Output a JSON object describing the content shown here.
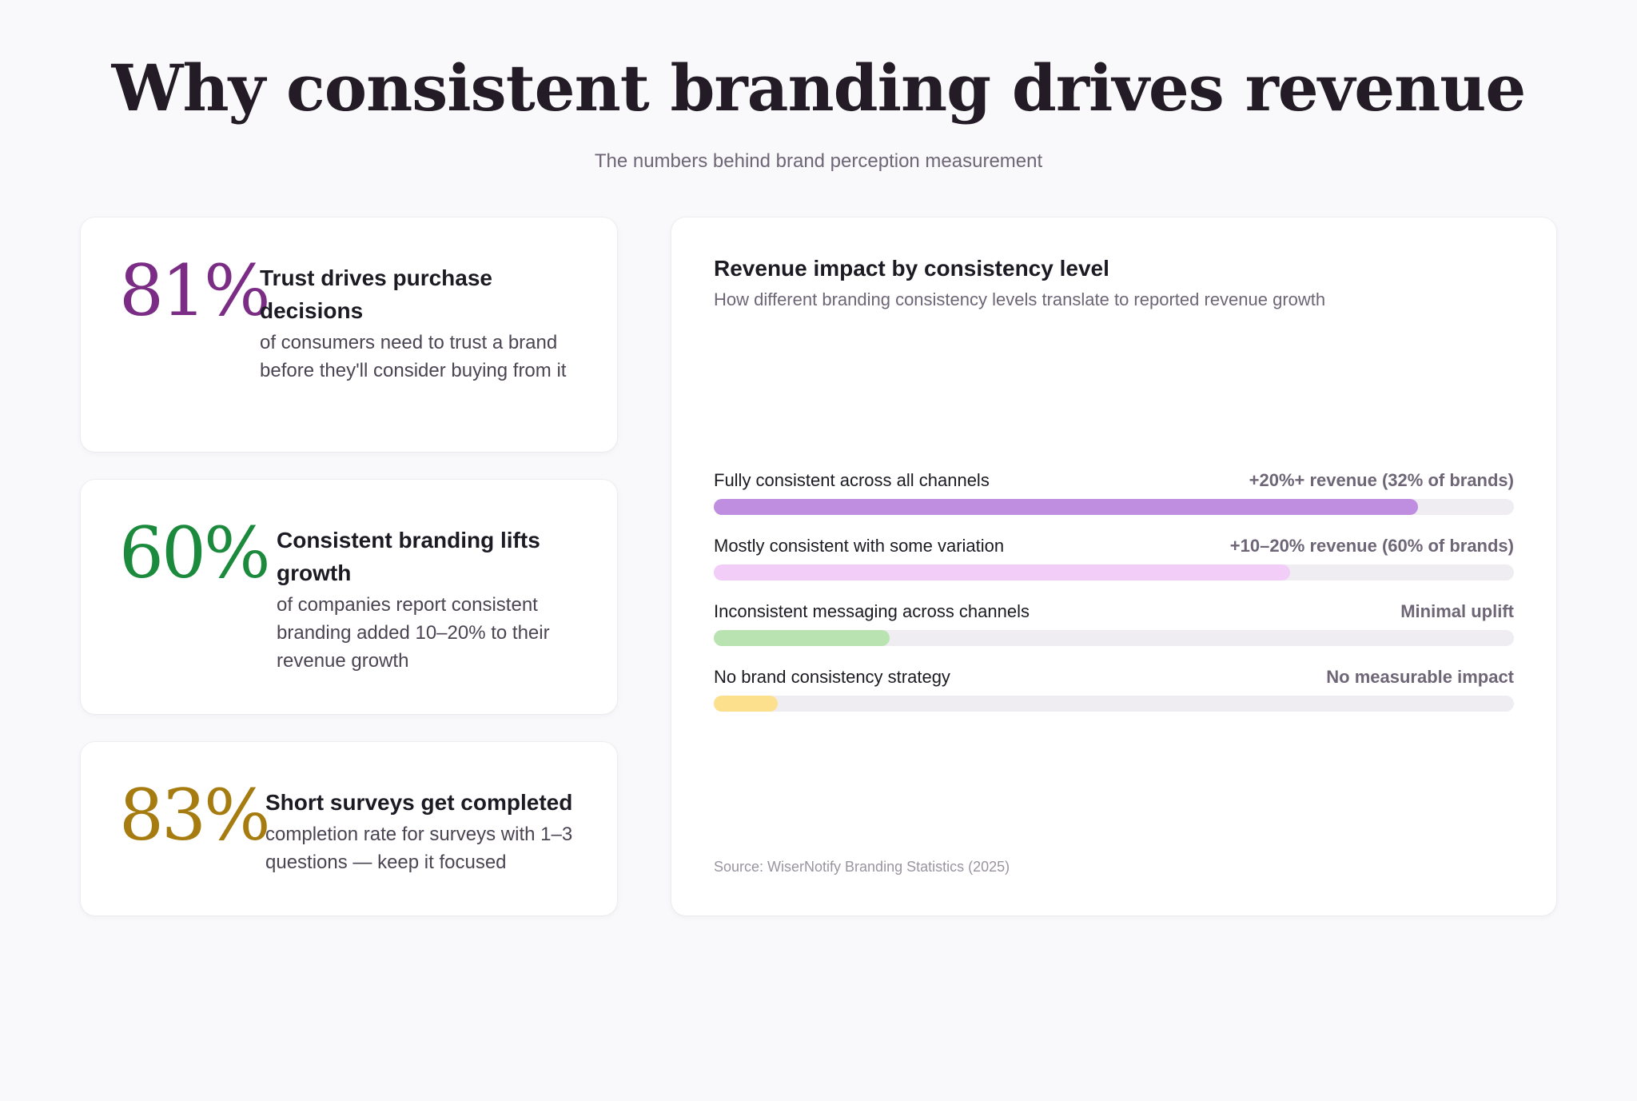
{
  "header": {
    "title": "Why consistent branding drives revenue",
    "subtitle": "The numbers behind brand perception measurement"
  },
  "stats": [
    {
      "number": "81%",
      "title": "Trust drives purchase decisions",
      "desc": "of consumers need to trust a brand before they'll consider buying from it",
      "color": "#7b2d86"
    },
    {
      "number": "60%",
      "title": "Consistent branding lifts growth",
      "desc": "of companies report consistent branding added 10–20% to their revenue growth",
      "color": "#1c8a3c"
    },
    {
      "number": "83%",
      "title": "Short surveys get completed",
      "desc": "completion rate for surveys with 1–3 questions — keep it focused",
      "color": "#a67c10"
    }
  ],
  "chart_data": {
    "type": "bar",
    "orientation": "horizontal",
    "title": "Revenue impact by consistency level",
    "subtitle": "How different branding consistency levels translate to reported revenue growth",
    "categories": [
      "Fully consistent across all channels",
      "Mostly consistent with some variation",
      "Inconsistent messaging across channels",
      "No brand consistency strategy"
    ],
    "value_labels": [
      "+20%+ revenue (32% of brands)",
      "+10–20% revenue (60% of brands)",
      "Minimal uplift",
      "No measurable impact"
    ],
    "values": [
      88,
      72,
      22,
      8
    ],
    "range": [
      0,
      100
    ],
    "colors": [
      "#c08ee0",
      "#f1cdf8",
      "#b9e3b0",
      "#fde08e"
    ],
    "track_color": "#efedf2",
    "source": "Source: WiserNotify Branding Statistics (2025)"
  }
}
